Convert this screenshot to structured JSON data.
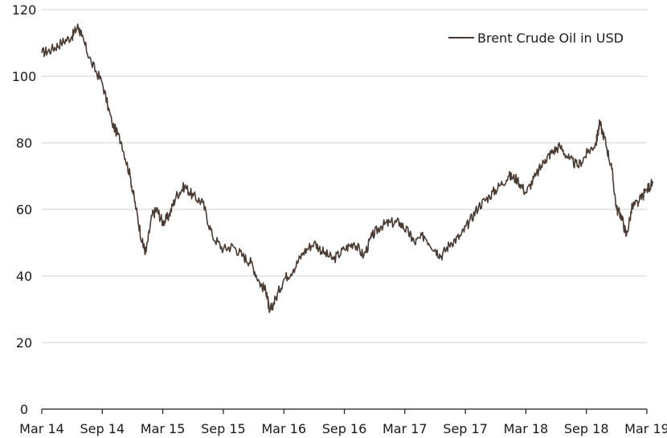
{
  "chart_data": {
    "type": "line",
    "title": "",
    "xlabel": "",
    "ylabel": "",
    "ylim": [
      0,
      120
    ],
    "y_ticks": [
      0,
      20,
      40,
      60,
      80,
      100,
      120
    ],
    "x_ticks": [
      "Mar 14",
      "Sep 14",
      "Mar 15",
      "Sep 15",
      "Mar 16",
      "Sep 16",
      "Mar 17",
      "Sep 17",
      "Mar 18",
      "Sep 18",
      "Mar 19"
    ],
    "grid": "horizontal",
    "legend_position": "top-right",
    "series": [
      {
        "name": "Brent Crude Oil in USD",
        "color": "#4a3b32",
        "x": [
          2014.17,
          2014.25,
          2014.33,
          2014.42,
          2014.47,
          2014.5,
          2014.58,
          2014.67,
          2014.75,
          2014.83,
          2014.9,
          2014.95,
          2015.0,
          2015.03,
          2015.08,
          2015.12,
          2015.17,
          2015.22,
          2015.28,
          2015.35,
          2015.42,
          2015.5,
          2015.58,
          2015.67,
          2015.75,
          2015.83,
          2015.9,
          2015.97,
          2016.03,
          2016.05,
          2016.1,
          2016.17,
          2016.25,
          2016.33,
          2016.42,
          2016.5,
          2016.58,
          2016.67,
          2016.75,
          2016.83,
          2016.9,
          2016.97,
          2017.05,
          2017.13,
          2017.2,
          2017.25,
          2017.33,
          2017.42,
          2017.47,
          2017.55,
          2017.63,
          2017.7,
          2017.78,
          2017.87,
          2017.95,
          2018.03,
          2018.1,
          2018.17,
          2018.25,
          2018.33,
          2018.38,
          2018.45,
          2018.53,
          2018.6,
          2018.68,
          2018.75,
          2018.78,
          2018.83,
          2018.88,
          2018.92,
          2018.96,
          2019.0,
          2019.05,
          2019.1,
          2019.17,
          2019.22
        ],
        "values": [
          107,
          108,
          110,
          112,
          115,
          112,
          104,
          98,
          86,
          80,
          70,
          60,
          50,
          47,
          58,
          60,
          56,
          58,
          64,
          67,
          64,
          62,
          52,
          48,
          49,
          46,
          44,
          38,
          35,
          29,
          33,
          39,
          42,
          47,
          50,
          47,
          45,
          48,
          50,
          46,
          52,
          55,
          56,
          56,
          53,
          50,
          52,
          48,
          46,
          50,
          52,
          56,
          61,
          64,
          67,
          70,
          69,
          65,
          70,
          75,
          77,
          79,
          75,
          73,
          77,
          80,
          86,
          80,
          72,
          60,
          58,
          52,
          61,
          62,
          66,
          68
        ]
      }
    ]
  }
}
